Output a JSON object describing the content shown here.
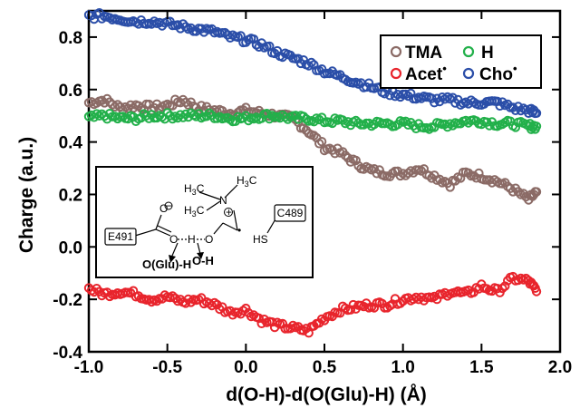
{
  "chart_data": {
    "type": "scatter",
    "xlabel": "d(O-H)-d(O(Glu)-H) (Å)",
    "ylabel": "Charge (a.u.)",
    "xlim": [
      -1.0,
      2.0
    ],
    "ylim": [
      -0.4,
      0.9
    ],
    "xticks": [
      -1.0,
      -0.5,
      0.0,
      0.5,
      1.0,
      1.5,
      2.0
    ],
    "xtick_labels": [
      "-1.0",
      "-0.5",
      "0.0",
      "0.5",
      "1.0",
      "1.5",
      "2.0"
    ],
    "yticks": [
      -0.4,
      -0.2,
      0.0,
      0.2,
      0.4,
      0.6,
      0.8
    ],
    "ytick_labels": [
      "-0.4",
      "-0.2",
      "0.0",
      "0.2",
      "0.4",
      "0.6",
      "0.8"
    ],
    "grid": false,
    "legend_position": "top-right",
    "series": [
      {
        "name": "TMA",
        "color": "#8b6b66",
        "x": [
          -1.0,
          -0.9,
          -0.8,
          -0.7,
          -0.6,
          -0.5,
          -0.4,
          -0.3,
          -0.2,
          -0.1,
          0.0,
          0.1,
          0.2,
          0.3,
          0.4,
          0.5,
          0.6,
          0.7,
          0.8,
          0.9,
          1.0,
          1.1,
          1.2,
          1.3,
          1.4,
          1.5,
          1.6,
          1.7,
          1.8,
          1.85
        ],
        "y": [
          0.55,
          0.56,
          0.53,
          0.54,
          0.53,
          0.54,
          0.56,
          0.53,
          0.52,
          0.51,
          0.52,
          0.51,
          0.5,
          0.49,
          0.44,
          0.38,
          0.36,
          0.32,
          0.29,
          0.28,
          0.28,
          0.3,
          0.27,
          0.24,
          0.28,
          0.27,
          0.25,
          0.22,
          0.18,
          0.21
        ]
      },
      {
        "name": "H",
        "color": "#22b04a",
        "x": [
          -1.0,
          -0.9,
          -0.8,
          -0.7,
          -0.6,
          -0.5,
          -0.4,
          -0.3,
          -0.2,
          -0.1,
          0.0,
          0.1,
          0.2,
          0.3,
          0.4,
          0.5,
          0.6,
          0.7,
          0.8,
          0.9,
          1.0,
          1.1,
          1.2,
          1.3,
          1.4,
          1.5,
          1.6,
          1.7,
          1.8,
          1.85
        ],
        "y": [
          0.49,
          0.5,
          0.49,
          0.49,
          0.5,
          0.5,
          0.5,
          0.5,
          0.5,
          0.49,
          0.49,
          0.5,
          0.5,
          0.49,
          0.49,
          0.48,
          0.48,
          0.47,
          0.47,
          0.47,
          0.47,
          0.46,
          0.46,
          0.47,
          0.48,
          0.48,
          0.47,
          0.47,
          0.46,
          0.46
        ]
      },
      {
        "name": "Acet",
        "color": "#e8242c",
        "x": [
          -1.0,
          -0.9,
          -0.8,
          -0.7,
          -0.6,
          -0.5,
          -0.4,
          -0.3,
          -0.2,
          -0.1,
          0.0,
          0.1,
          0.2,
          0.3,
          0.4,
          0.5,
          0.6,
          0.7,
          0.8,
          0.9,
          1.0,
          1.1,
          1.2,
          1.3,
          1.4,
          1.5,
          1.6,
          1.7,
          1.8,
          1.85
        ],
        "y": [
          -0.16,
          -0.18,
          -0.17,
          -0.18,
          -0.2,
          -0.19,
          -0.21,
          -0.2,
          -0.22,
          -0.25,
          -0.24,
          -0.28,
          -0.3,
          -0.31,
          -0.32,
          -0.27,
          -0.24,
          -0.23,
          -0.22,
          -0.22,
          -0.2,
          -0.19,
          -0.2,
          -0.17,
          -0.18,
          -0.15,
          -0.17,
          -0.12,
          -0.13,
          -0.17
        ]
      },
      {
        "name": "Cho",
        "color": "#2b4ea8",
        "x": [
          -1.0,
          -0.9,
          -0.8,
          -0.7,
          -0.6,
          -0.5,
          -0.4,
          -0.3,
          -0.2,
          -0.1,
          0.0,
          0.1,
          0.2,
          0.3,
          0.4,
          0.5,
          0.6,
          0.7,
          0.8,
          0.9,
          1.0,
          1.1,
          1.2,
          1.3,
          1.4,
          1.5,
          1.6,
          1.7,
          1.8,
          1.85
        ],
        "y": [
          0.88,
          0.88,
          0.87,
          0.86,
          0.86,
          0.85,
          0.84,
          0.83,
          0.82,
          0.8,
          0.79,
          0.77,
          0.74,
          0.72,
          0.7,
          0.67,
          0.65,
          0.63,
          0.61,
          0.59,
          0.58,
          0.57,
          0.56,
          0.56,
          0.55,
          0.55,
          0.55,
          0.53,
          0.52,
          0.51
        ]
      }
    ],
    "legend": {
      "labels": [
        "TMA",
        "H",
        "Acet",
        "Cho"
      ],
      "superscripts": [
        "",
        "",
        "•",
        "•"
      ]
    },
    "inset": {
      "labels": {
        "e491": "E491",
        "c489": "C489",
        "oglu_h": "O(Glu)-H",
        "oh": "O-H",
        "h3c_top": "H",
        "h3c_top_sub": "3",
        "h3c_top_c": "C",
        "h3c_mid": "H",
        "h3c_mid_sub": "3",
        "h3c_mid_c": "C",
        "h3c_right": "H",
        "h3c_right_sub": "3",
        "h3c_right_c": "C",
        "n": "N",
        "o_minus": "O",
        "o_ester": "O",
        "o_hbond": "O",
        "h_mid": "H",
        "o_ring": "O",
        "hs": "HS",
        "plus": "+",
        "minus": "−",
        "radical": "•"
      }
    }
  }
}
